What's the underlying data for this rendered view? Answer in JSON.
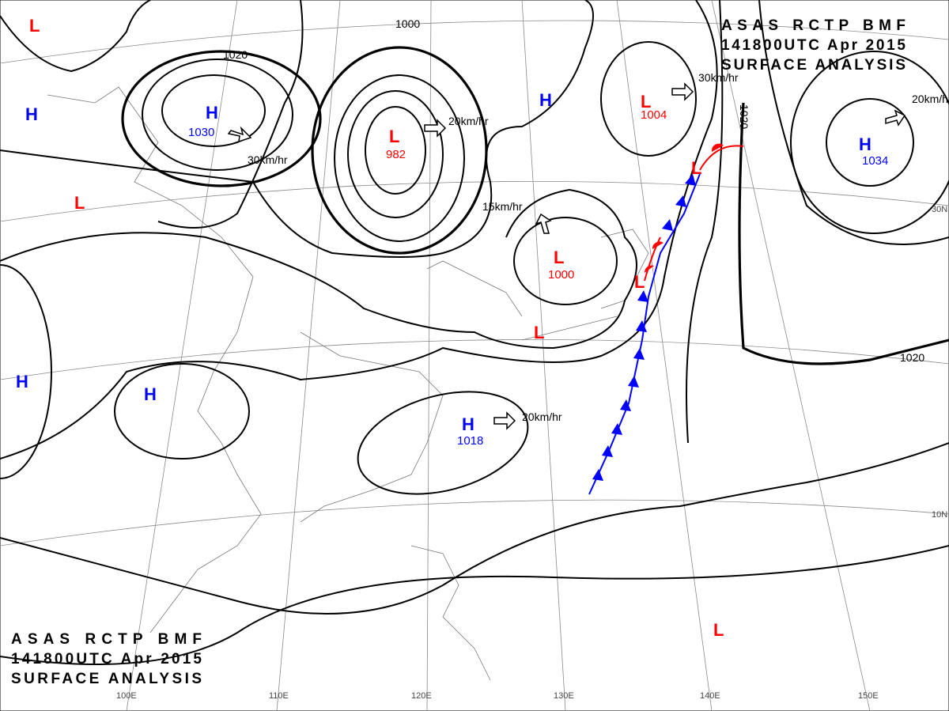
{
  "titles": [
    {
      "lines": [
        "ASAS    RCTP    BMF",
        "141800UTC    Apr    2015",
        "SURFACE  ANALYSIS"
      ]
    },
    {
      "lines": [
        "ASAS    RCTP    BMF",
        "141800UTC    Apr    2015",
        "SURFACE  ANALYSIS"
      ]
    }
  ],
  "pressure_systems": [
    {
      "symbol": "H",
      "pressure": 1030
    },
    {
      "symbol": "L",
      "pressure": 982
    },
    {
      "symbol": "H"
    },
    {
      "symbol": "L",
      "pressure": 1004
    },
    {
      "symbol": "H",
      "pressure": 1034
    },
    {
      "symbol": "L",
      "pressure": 1000
    },
    {
      "symbol": "H",
      "pressure": 1018
    },
    {
      "symbol": "L"
    },
    {
      "symbol": "L"
    },
    {
      "symbol": "L"
    },
    {
      "symbol": "L"
    },
    {
      "symbol": "L"
    },
    {
      "symbol": "L"
    },
    {
      "symbol": "H"
    },
    {
      "symbol": "H"
    },
    {
      "symbol": "H"
    }
  ],
  "isobar_labels": [
    "1000",
    "1020",
    "1020",
    "1020"
  ],
  "motion_labels": [
    "30km/hr",
    "20km/hr",
    "30km/hr",
    "20km/hr",
    "15km/hr",
    "20km/hr"
  ],
  "longitude_labels": [
    "100E",
    "110E",
    "120E",
    "130E",
    "140E",
    "150E"
  ],
  "latitude_labels": [
    "30N",
    "10N"
  ]
}
